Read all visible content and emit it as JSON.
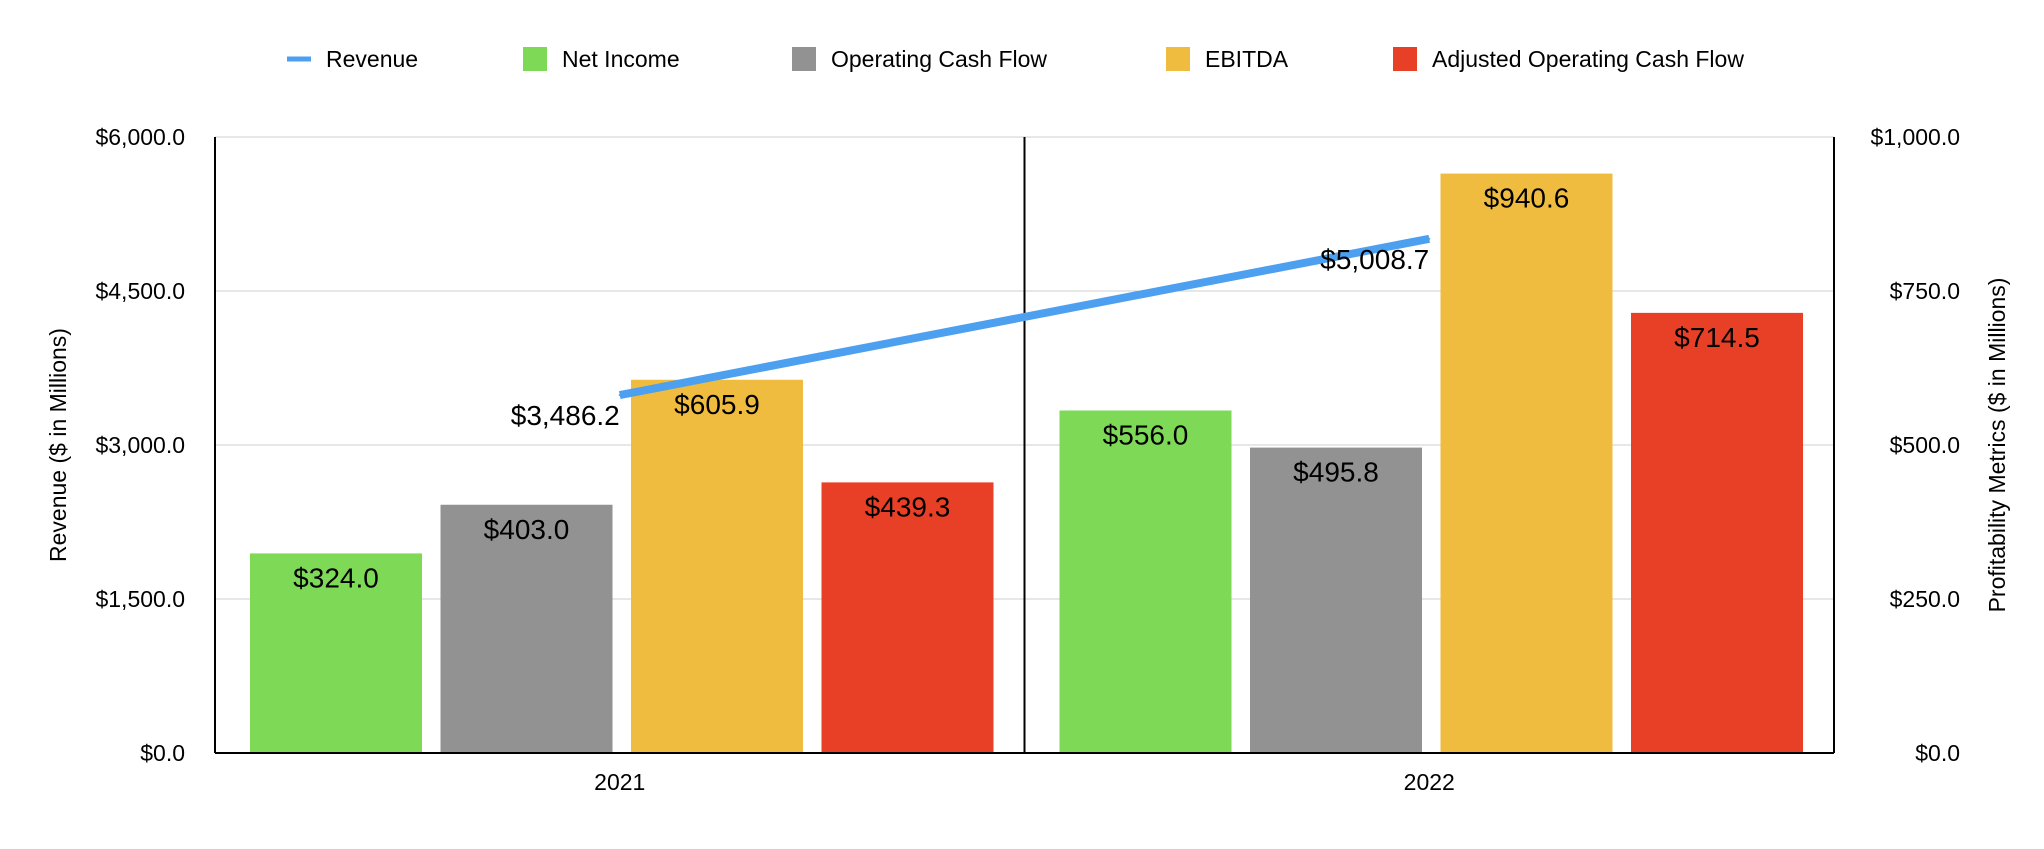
{
  "chart_data": {
    "type": "bar",
    "categories": [
      "2021",
      "2022"
    ],
    "series": [
      {
        "name": "Net Income",
        "axis": "right",
        "color": "#7ED957",
        "values": [
          324.0,
          556.0
        ],
        "labels": [
          "$324.0",
          "$556.0"
        ]
      },
      {
        "name": "Operating Cash Flow",
        "axis": "right",
        "color": "#929292",
        "values": [
          403.0,
          495.8
        ],
        "labels": [
          "$403.0",
          "$495.8"
        ]
      },
      {
        "name": "EBITDA",
        "axis": "right",
        "color": "#EFBC40",
        "values": [
          605.9,
          940.6
        ],
        "labels": [
          "$605.9",
          "$940.6"
        ]
      },
      {
        "name": "Adjusted Operating Cash Flow",
        "axis": "right",
        "color": "#E84026",
        "values": [
          439.3,
          714.5
        ],
        "labels": [
          "$439.3",
          "$714.5"
        ]
      }
    ],
    "line_series": {
      "name": "Revenue",
      "type": "line",
      "axis": "left",
      "color": "#4DA0F0",
      "values": [
        3486.2,
        5008.7
      ],
      "labels": [
        "$3,486.2",
        "$5,008.7"
      ]
    },
    "legend_order": [
      "Revenue",
      "Net Income",
      "Operating Cash Flow",
      "EBITDA",
      "Adjusted Operating Cash Flow"
    ],
    "legend_position": "top",
    "ylabel": "Revenue ($ in Millions)",
    "ylabel_right": "Profitability Metrics ($ in Millions)",
    "ylim": [
      0,
      6000
    ],
    "ylim_right": [
      0,
      1000
    ],
    "yticks": [
      "$0.0",
      "$1,500.0",
      "$3,000.0",
      "$4,500.0",
      "$6,000.0"
    ],
    "yticks_values": [
      0,
      1500,
      3000,
      4500,
      6000
    ],
    "yticks_right": [
      "$0.0",
      "$250.0",
      "$500.0",
      "$750.0",
      "$1,000.0"
    ],
    "yticks_right_values": [
      0,
      250,
      500,
      750,
      1000
    ],
    "grid": true
  }
}
